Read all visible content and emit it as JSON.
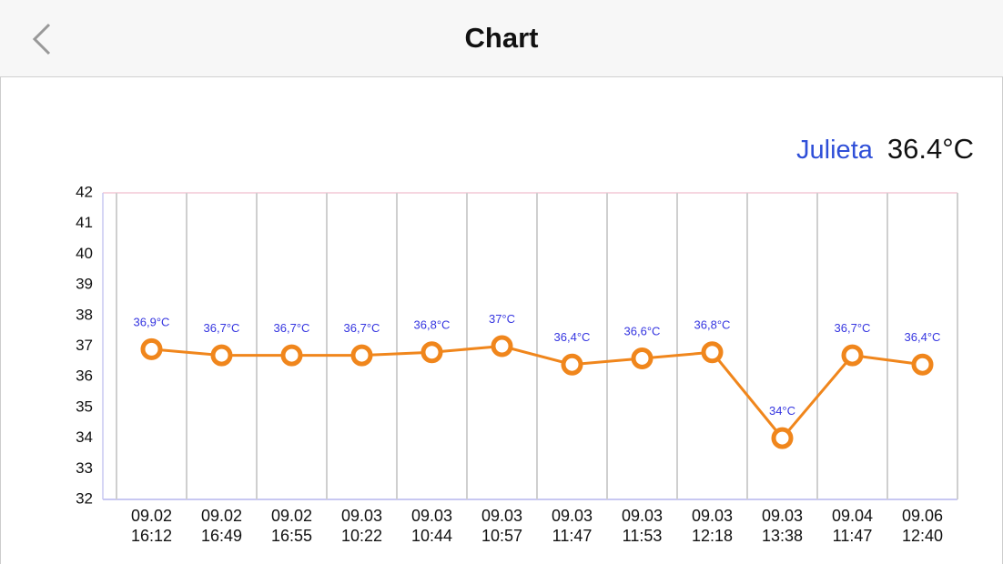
{
  "header": {
    "title": "Chart"
  },
  "current_reading": "36.4°C",
  "chart_data": {
    "type": "line",
    "categories": [
      "09.02\n16:12",
      "09.02\n16:49",
      "09.02\n16:55",
      "09.03\n10:22",
      "09.03\n10:44",
      "09.03\n10:57",
      "09.03\n11:47",
      "09.03\n11:53",
      "09.03\n12:18",
      "09.03\n13:38",
      "09.04\n11:47",
      "09.06\n12:40"
    ],
    "series": [
      {
        "name": "Julieta",
        "color": "#f0861c",
        "values": [
          36.9,
          36.7,
          36.7,
          36.7,
          36.8,
          37,
          36.4,
          36.6,
          36.8,
          34,
          36.7,
          36.4
        ],
        "value_labels": [
          "36,9°C",
          "36,7°C",
          "36,7°C",
          "36,7°C",
          "36,8°C",
          "37°C",
          "36,4°C",
          "36,6°C",
          "36,8°C",
          "34°C",
          "36,7°C",
          "36,4°C"
        ]
      }
    ],
    "ylim": [
      32,
      42
    ],
    "yticks": [
      32,
      33,
      34,
      35,
      36,
      37,
      38,
      39,
      40,
      41,
      42
    ],
    "grid": true
  }
}
